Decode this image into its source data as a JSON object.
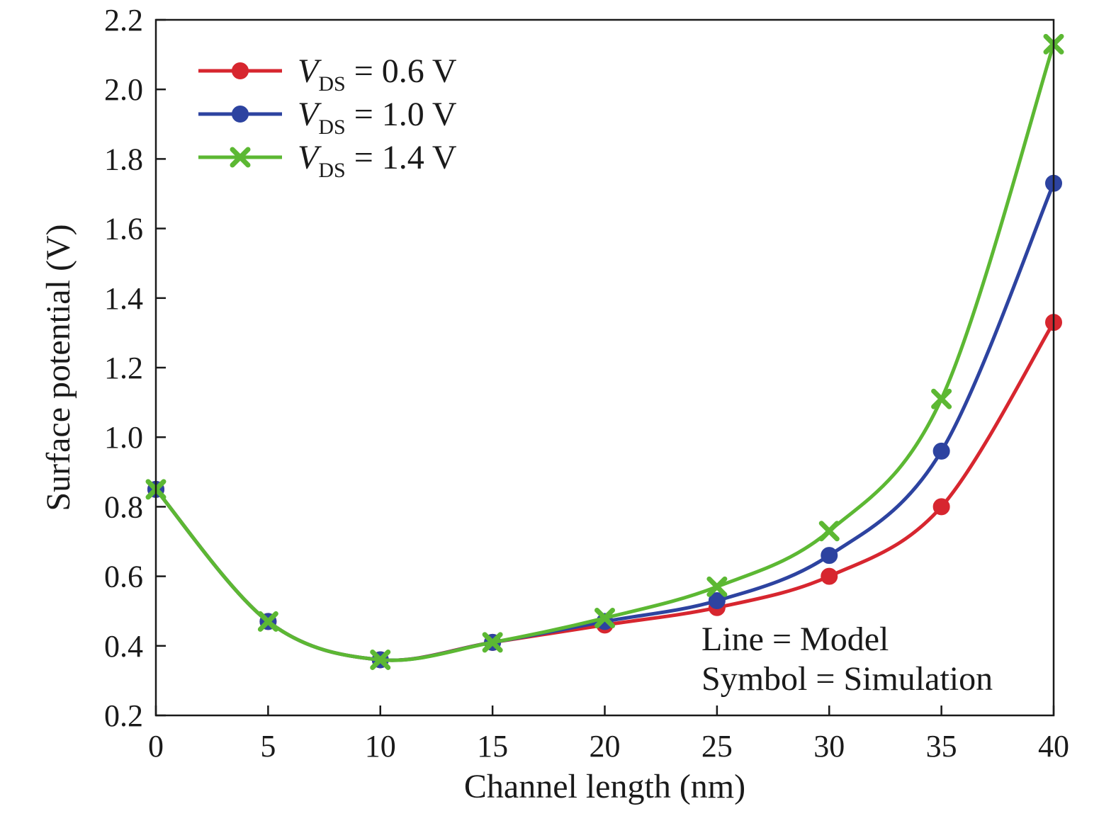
{
  "chart_data": {
    "type": "line",
    "title": "",
    "xlabel": "Channel length (nm)",
    "ylabel": "Surface potential (V)",
    "xlim": [
      0,
      40
    ],
    "ylim": [
      0.2,
      2.2
    ],
    "xticks": [
      "0",
      "5",
      "10",
      "15",
      "20",
      "25",
      "30",
      "35",
      "40"
    ],
    "yticks": [
      "0.2",
      "0.4",
      "0.6",
      "0.8",
      "1.0",
      "1.2",
      "1.4",
      "1.6",
      "1.8",
      "2.0",
      "2.2"
    ],
    "grid": false,
    "legend_position": "top-left",
    "x": [
      0,
      5,
      10,
      15,
      20,
      25,
      30,
      35,
      40
    ],
    "series": [
      {
        "name": "V_DS = 0.6 V",
        "label_main": "V",
        "label_sub": "DS",
        "label_rest": " = 0.6 V",
        "color": "#d7262f",
        "marker": "circle",
        "values": [
          0.85,
          0.47,
          0.36,
          0.41,
          0.46,
          0.51,
          0.6,
          0.8,
          1.33
        ]
      },
      {
        "name": "V_DS = 1.0 V",
        "label_main": "V",
        "label_sub": "DS",
        "label_rest": " = 1.0 V",
        "color": "#2d43a0",
        "marker": "circle",
        "values": [
          0.85,
          0.47,
          0.36,
          0.41,
          0.47,
          0.53,
          0.66,
          0.96,
          1.73
        ]
      },
      {
        "name": "V_DS = 1.4 V",
        "label_main": "V",
        "label_sub": "DS",
        "label_rest": " = 1.4 V",
        "color": "#5cb833",
        "marker": "x",
        "values": [
          0.85,
          0.47,
          0.36,
          0.41,
          0.48,
          0.57,
          0.73,
          1.11,
          2.13
        ]
      }
    ],
    "annotations": [
      "Line = Model",
      "Symbol = Simulation"
    ]
  }
}
